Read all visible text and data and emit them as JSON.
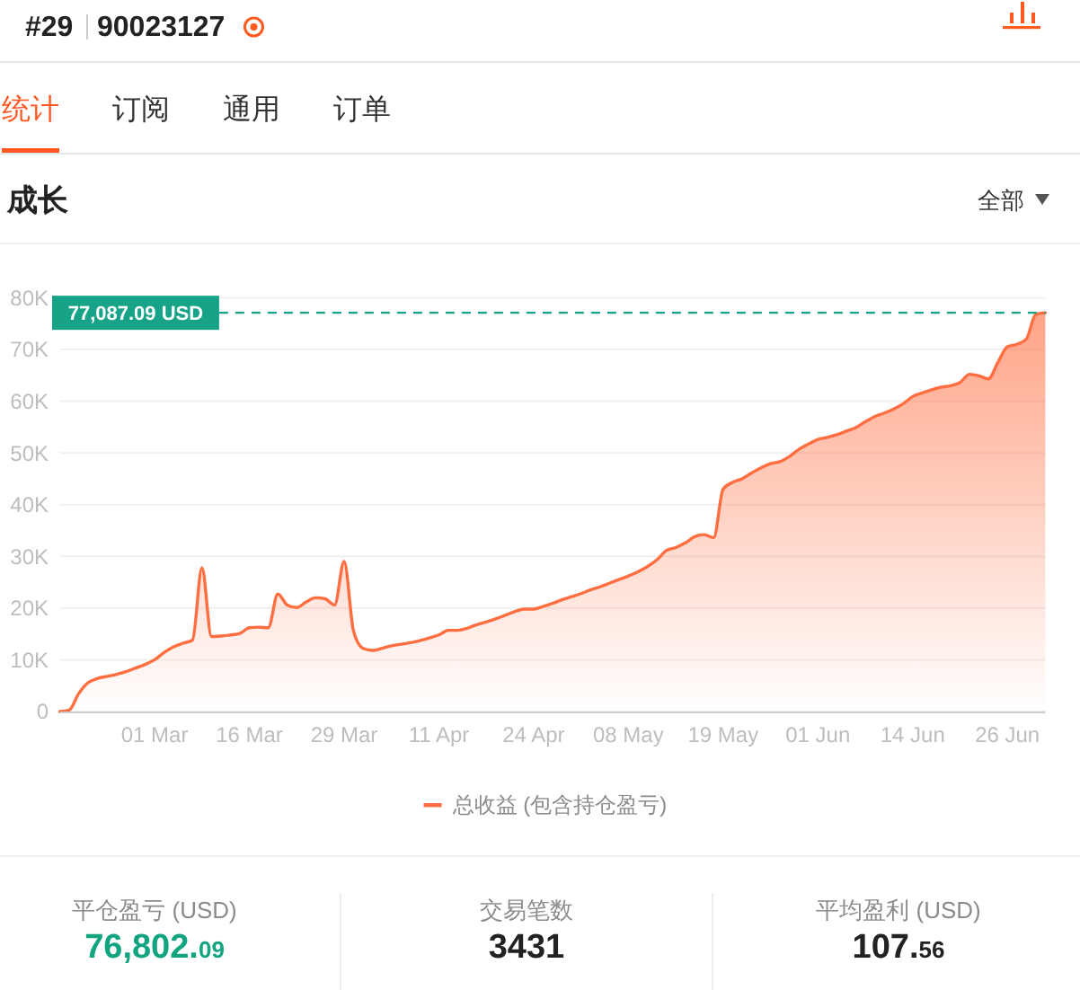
{
  "chart_data": [
    {
      "type": "other",
      "annotations": [
        "#29",
        "90023127",
        "统计",
        "订阅",
        "通用",
        "订单"
      ]
    },
    {
      "type": "area",
      "title": "成长",
      "annotations": [
        "全部"
      ],
      "categories": [
        null,
        null,
        null,
        null,
        null,
        null,
        null,
        null,
        null,
        null,
        "01 Mar",
        null,
        null,
        null,
        null,
        null,
        null,
        null,
        null,
        null,
        "16 Mar",
        null,
        null,
        null,
        null,
        null,
        null,
        null,
        null,
        null,
        "29 Mar",
        null,
        null,
        null,
        null,
        null,
        null,
        null,
        null,
        null,
        "11 Apr",
        null,
        null,
        null,
        null,
        null,
        null,
        null,
        null,
        null,
        "24 Apr",
        null,
        null,
        null,
        null,
        null,
        null,
        null,
        null,
        null,
        "08 May",
        null,
        null,
        null,
        null,
        null,
        null,
        null,
        null,
        null,
        "19 May",
        null,
        null,
        null,
        null,
        null,
        null,
        null,
        null,
        null,
        "01 Jun",
        null,
        null,
        null,
        null,
        null,
        null,
        null,
        null,
        null,
        "14 Jun",
        null,
        null,
        null,
        null,
        null,
        null,
        null,
        null,
        null,
        "26 Jun",
        null,
        null,
        null,
        null
      ],
      "series": [
        {
          "name": "总收益 (包含持仓盈亏)",
          "color": "#ff6e40",
          "values": [
            0,
            300,
            3500,
            5600,
            6400,
            6800,
            7200,
            7700,
            8400,
            9100,
            10000,
            11400,
            12500,
            13200,
            13800,
            27800,
            14500,
            14600,
            14800,
            15100,
            16200,
            16300,
            16200,
            22700,
            20600,
            20100,
            21200,
            22000,
            21800,
            20600,
            29000,
            15500,
            12200,
            11800,
            12200,
            12700,
            13000,
            13300,
            13700,
            14200,
            14800,
            15700,
            15700,
            16100,
            16800,
            17300,
            17900,
            18600,
            19300,
            19800,
            19800,
            20300,
            20900,
            21600,
            22200,
            22800,
            23500,
            24100,
            24800,
            25500,
            26200,
            27000,
            28000,
            29300,
            31100,
            31700,
            32600,
            33800,
            34200,
            33600,
            43000,
            44300,
            45000,
            46100,
            47100,
            47900,
            48300,
            49300,
            50700,
            51700,
            52600,
            53000,
            53500,
            54200,
            54900,
            56000,
            57000,
            57700,
            58500,
            59500,
            60900,
            61600,
            62200,
            62700,
            63000,
            63600,
            65200,
            64900,
            64300,
            67500,
            70500,
            71000,
            72000,
            76800,
            77100
          ]
        }
      ],
      "ylim": [
        0,
        80000
      ],
      "yticks": [
        0,
        {
          "value": 10000,
          "label": "10K"
        },
        {
          "value": 20000,
          "label": "20K"
        },
        {
          "value": 30000,
          "label": "30K"
        },
        {
          "value": 40000,
          "label": "40K"
        },
        {
          "value": 50000,
          "label": "50K"
        },
        {
          "value": 60000,
          "label": "60K"
        },
        {
          "value": 70000,
          "label": "70K"
        },
        {
          "value": 80000,
          "label": "80K"
        }
      ],
      "ref_lines": [
        {
          "axis": "y",
          "value": 77087.09,
          "label": "77,087.09 USD",
          "color": "#16a388",
          "line_style": "dashed"
        }
      ],
      "grid": "y",
      "legend": "bottom"
    },
    {
      "type": "other",
      "annotations": [
        "平仓盈亏 (USD)",
        "76,802.09",
        "交易笔数",
        "3431",
        "平均盈利 (USD)",
        "107.56"
      ]
    }
  ]
}
